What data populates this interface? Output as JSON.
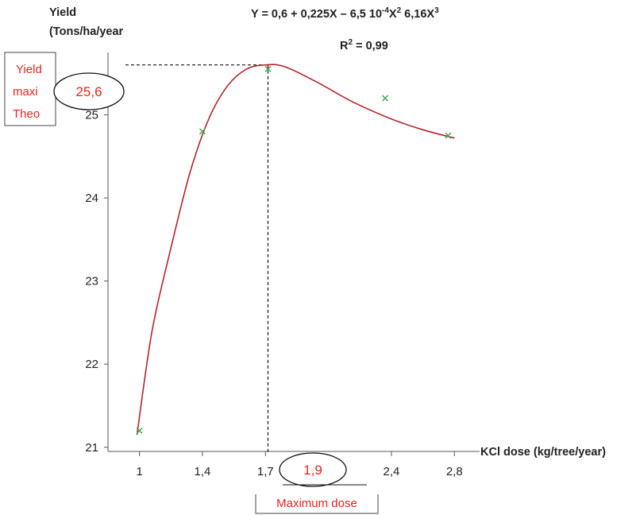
{
  "chart_data": {
    "type": "scatter",
    "ylabel_line1": "Yield",
    "ylabel_line2": "(Tons/ha/year",
    "xlabel": "KCl dose (kg/tree/year)",
    "equation": {
      "main": "Y = 0,6 + 0,225X – 6,5 10",
      "exp1": "-4",
      "mid": "X",
      "exp2": "2",
      "tail": " 6,16X",
      "exp3": "3"
    },
    "r2": {
      "prefix": "R",
      "exp": "2",
      "suffix": " = 0,99"
    },
    "x_ticks": [
      {
        "label": "1",
        "value": 1.0
      },
      {
        "label": "1,4",
        "value": 1.5
      },
      {
        "label": "1,7",
        "value": 2.0
      },
      {
        "label": "2,4",
        "value": 3.0
      },
      {
        "label": "2,8",
        "value": 3.5
      }
    ],
    "y_ticks": [
      {
        "label": "21",
        "value": 21
      },
      {
        "label": "22",
        "value": 22
      },
      {
        "label": "23",
        "value": 23
      },
      {
        "label": "24",
        "value": 24
      },
      {
        "label": "25",
        "value": 25
      }
    ],
    "xlim": [
      0.75,
      3.7
    ],
    "ylim": [
      20.95,
      25.75
    ],
    "points": [
      {
        "x": 1.0,
        "y": 21.2
      },
      {
        "x": 1.5,
        "y": 24.8
      },
      {
        "x": 2.02,
        "y": 25.55
      },
      {
        "x": 2.95,
        "y": 25.2
      },
      {
        "x": 3.45,
        "y": 24.75
      }
    ],
    "curve": [
      {
        "x": 0.98,
        "y": 21.15
      },
      {
        "x": 1.1,
        "y": 22.4
      },
      {
        "x": 1.25,
        "y": 23.4
      },
      {
        "x": 1.4,
        "y": 24.3
      },
      {
        "x": 1.55,
        "y": 24.95
      },
      {
        "x": 1.7,
        "y": 25.35
      },
      {
        "x": 1.85,
        "y": 25.55
      },
      {
        "x": 2.0,
        "y": 25.6
      },
      {
        "x": 2.15,
        "y": 25.58
      },
      {
        "x": 2.4,
        "y": 25.4
      },
      {
        "x": 2.7,
        "y": 25.15
      },
      {
        "x": 3.0,
        "y": 24.95
      },
      {
        "x": 3.25,
        "y": 24.82
      },
      {
        "x": 3.5,
        "y": 24.72
      }
    ],
    "max_point": {
      "x": 2.02,
      "y": 25.6
    },
    "series_color": "#b5242c",
    "marker_color": "#3fa34d"
  },
  "annotations": {
    "yield_max": {
      "line1": "Yield",
      "line2": "maxi",
      "line3": "Theo",
      "value": "25,6"
    },
    "max_dose": {
      "value": "1,9",
      "label": "Maximum dose"
    },
    "accent_color": "#e8231f"
  }
}
